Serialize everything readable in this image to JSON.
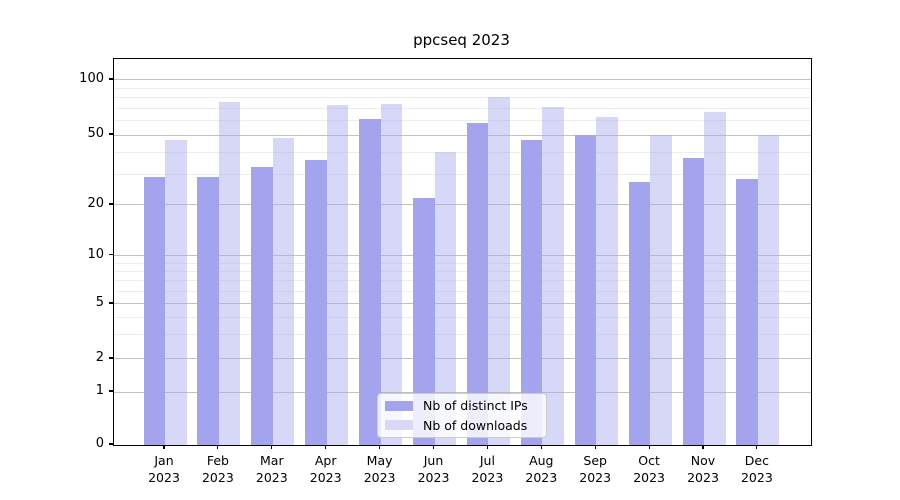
{
  "title": "ppcseq 2023",
  "colors": {
    "bar_distinct_ips": "#a3a3ee",
    "bar_downloads": "#d9d9f7",
    "bar_downloads_fill": "rgba(166,166,238,0.45)",
    "grid_major": "rgba(0,0,0,0.24)",
    "grid_minor": "rgba(0,0,0,0.07)",
    "axis": "#000000",
    "legend_border": "#cccccc",
    "background": "#ffffff"
  },
  "chart_data": {
    "type": "bar",
    "title": "ppcseq 2023",
    "xlabel": "",
    "ylabel": "",
    "grid": true,
    "yscale": "symlog",
    "ylim": [
      0,
      130
    ],
    "legend_position": "lower center",
    "categories": [
      "Jan 2023",
      "Feb 2023",
      "Mar 2023",
      "Apr 2023",
      "May 2023",
      "Jun 2023",
      "Jul 2023",
      "Aug 2023",
      "Sep 2023",
      "Oct 2023",
      "Nov 2023",
      "Dec 2023"
    ],
    "series": [
      {
        "name": "Nb of distinct IPs",
        "color": "#a3a3ee",
        "values": [
          29,
          29,
          33,
          36,
          61,
          22,
          58,
          47,
          50,
          27,
          37,
          28
        ]
      },
      {
        "name": "Nb of downloads",
        "color": "#d9d9f7",
        "values": [
          47,
          76,
          48,
          73,
          74,
          40,
          81,
          71,
          63,
          50,
          67,
          50
        ]
      }
    ],
    "yticks_major": [
      100,
      50,
      20,
      10,
      5,
      2,
      1,
      0
    ],
    "yticks_minor": [
      3,
      4,
      6,
      7,
      8,
      9,
      30,
      40,
      60,
      70,
      80,
      90
    ],
    "ytick_fractions": [
      [
        0,
        0
      ],
      [
        1,
        0.1373
      ],
      [
        2,
        0.2228
      ],
      [
        5,
        0.3653
      ],
      [
        10,
        0.4904
      ],
      [
        20,
        0.6218
      ],
      [
        50,
        0.8031
      ],
      [
        100,
        0.9456
      ]
    ]
  }
}
